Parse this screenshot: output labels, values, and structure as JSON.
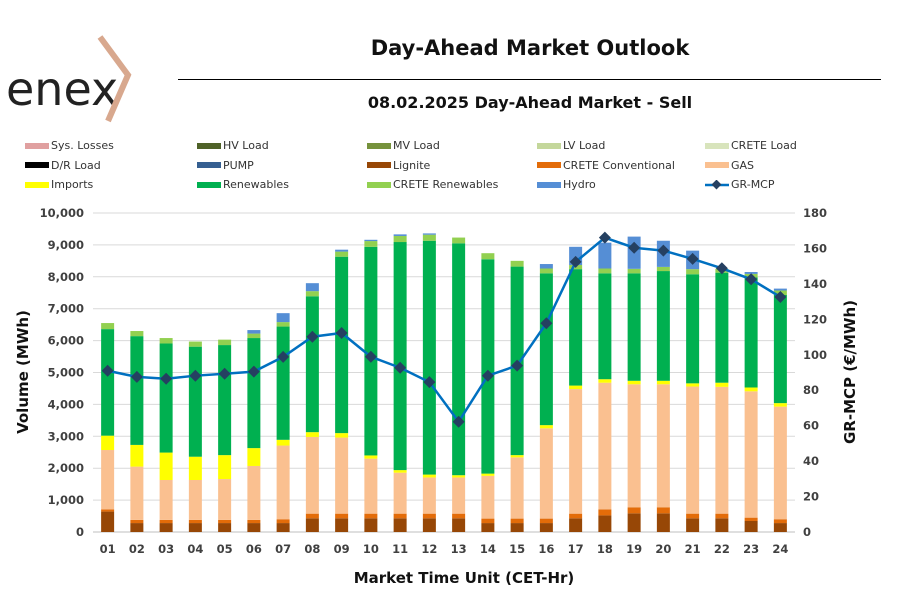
{
  "logo": {
    "text": "enex"
  },
  "header": {
    "title": "Day-Ahead Market Outlook",
    "subtitle": "08.02.2025  Day-Ahead Market - Sell"
  },
  "chart_data": {
    "type": "bar",
    "stacked": true,
    "title": "08.02.2025  Day-Ahead Market - Sell",
    "xlabel": "Market Time Unit (CET-Hr)",
    "ylabel": "Volume (MWh)",
    "y2label": "GR-MCP (€/MWh)",
    "ylim": [
      0,
      10000
    ],
    "y2lim": [
      0,
      180
    ],
    "yticks": [
      "0",
      "1,000",
      "2,000",
      "3,000",
      "4,000",
      "5,000",
      "6,000",
      "7,000",
      "8,000",
      "9,000",
      "10,000"
    ],
    "y2ticks": [
      "0",
      "20",
      "40",
      "60",
      "80",
      "100",
      "120",
      "140",
      "160",
      "180"
    ],
    "categories": [
      "01",
      "02",
      "03",
      "04",
      "05",
      "06",
      "07",
      "08",
      "09",
      "10",
      "11",
      "12",
      "13",
      "14",
      "15",
      "16",
      "17",
      "18",
      "19",
      "20",
      "21",
      "22",
      "23",
      "24"
    ],
    "legend": [
      {
        "name": "Sys. Losses",
        "color": "#e0a0a0"
      },
      {
        "name": "HV Load",
        "color": "#4f6228"
      },
      {
        "name": "MV Load",
        "color": "#76923c"
      },
      {
        "name": "LV Load",
        "color": "#c4d79b"
      },
      {
        "name": "CRETE Load",
        "color": "#d8e4bc"
      },
      {
        "name": "D/R Load",
        "color": "#000000"
      },
      {
        "name": "PUMP",
        "color": "#355f91"
      },
      {
        "name": "Lignite",
        "color": "#974706"
      },
      {
        "name": "CRETE Conventional",
        "color": "#e36c09"
      },
      {
        "name": "GAS",
        "color": "#fac090"
      },
      {
        "name": "Imports",
        "color": "#ffff00"
      },
      {
        "name": "Renewables",
        "color": "#00b050"
      },
      {
        "name": "CRETE Renewables",
        "color": "#92d050"
      },
      {
        "name": "Hydro",
        "color": "#558ed5"
      },
      {
        "name": "GR-MCP",
        "color": "#0070c0",
        "marker": "#254061"
      }
    ],
    "series": [
      {
        "name": "Lignite",
        "color": "#974706",
        "values": [
          640,
          280,
          280,
          280,
          280,
          280,
          280,
          430,
          430,
          430,
          430,
          430,
          430,
          280,
          280,
          280,
          430,
          520,
          585,
          585,
          430,
          430,
          345,
          280
        ]
      },
      {
        "name": "CRETE Conventional",
        "color": "#e36c09",
        "values": [
          70,
          100,
          100,
          100,
          100,
          100,
          120,
          145,
          145,
          145,
          145,
          145,
          145,
          140,
          140,
          140,
          145,
          190,
          190,
          190,
          145,
          145,
          105,
          120
        ]
      },
      {
        "name": "GAS",
        "color": "#fac090",
        "values": [
          1860,
          1670,
          1250,
          1250,
          1280,
          1690,
          2310,
          2405,
          2385,
          1725,
          1285,
          1135,
          1135,
          1340,
          1920,
          2830,
          3905,
          3970,
          3855,
          3855,
          3985,
          3975,
          3960,
          3530
        ]
      },
      {
        "name": "Imports",
        "color": "#ffff00",
        "values": [
          450,
          680,
          860,
          730,
          750,
          560,
          180,
          150,
          140,
          100,
          80,
          90,
          70,
          70,
          70,
          100,
          110,
          110,
          110,
          110,
          100,
          130,
          120,
          110
        ]
      },
      {
        "name": "Renewables",
        "color": "#00b050",
        "values": [
          3340,
          3410,
          3420,
          3450,
          3450,
          3450,
          3550,
          4260,
          5530,
          6540,
          7150,
          7330,
          7270,
          6720,
          5910,
          4760,
          3650,
          3320,
          3370,
          3440,
          3420,
          3450,
          3450,
          3390
        ]
      },
      {
        "name": "CRETE Renewables",
        "color": "#92d050",
        "values": [
          190,
          160,
          170,
          160,
          170,
          140,
          140,
          160,
          160,
          180,
          190,
          190,
          180,
          190,
          180,
          150,
          130,
          150,
          140,
          130,
          160,
          120,
          110,
          140
        ]
      },
      {
        "name": "Hydro",
        "color": "#558ed5",
        "values": [
          0,
          0,
          0,
          0,
          0,
          110,
          280,
          250,
          60,
          40,
          50,
          40,
          0,
          0,
          0,
          140,
          570,
          810,
          1010,
          820,
          580,
          0,
          60,
          60
        ]
      }
    ],
    "line": {
      "name": "GR-MCP",
      "axis": "right",
      "values": [
        91,
        87.5,
        86.5,
        88.2,
        89.3,
        90.5,
        98.8,
        110.2,
        112.3,
        98.9,
        92.7,
        84.6,
        62.2,
        88.2,
        93.9,
        117.8,
        152.4,
        166.1,
        160.4,
        158.8,
        154.1,
        148.8,
        142.6,
        132.6
      ]
    }
  }
}
